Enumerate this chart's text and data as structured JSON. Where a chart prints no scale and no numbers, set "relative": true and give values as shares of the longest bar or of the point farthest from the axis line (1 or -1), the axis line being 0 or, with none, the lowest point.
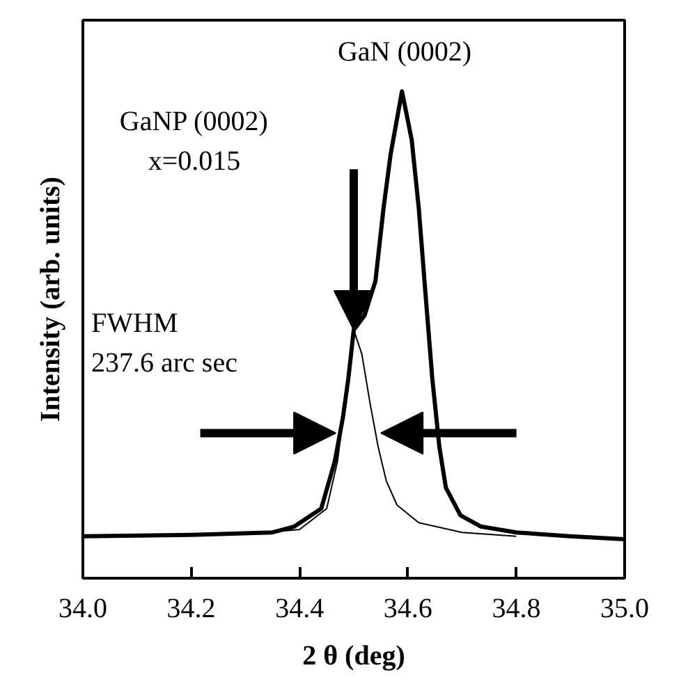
{
  "chart_data": {
    "type": "line",
    "relative": true,
    "xlabel": "2 θ (deg)",
    "ylabel": "Intensity (arb. units)",
    "xlim": [
      34.0,
      35.0
    ],
    "xticks": [
      {
        "value": 34.0,
        "label": "34.0"
      },
      {
        "value": 34.2,
        "label": "34.2"
      },
      {
        "value": 34.4,
        "label": "34.4"
      },
      {
        "value": 34.6,
        "label": "34.6"
      },
      {
        "value": 34.8,
        "label": "34.8"
      },
      {
        "value": 35.0,
        "label": "35.0"
      }
    ],
    "grid": false,
    "series": [
      {
        "color": "#000000",
        "x": [
          34.0,
          34.2,
          34.35,
          34.39,
          34.44,
          34.465,
          34.48,
          34.49,
          34.5,
          34.52,
          34.54,
          34.555,
          34.568,
          34.589,
          34.607,
          34.62,
          34.632,
          34.645,
          34.658,
          34.67,
          34.697,
          34.735,
          34.8,
          34.9,
          35.0
        ],
        "values": [
          0.086,
          0.089,
          0.094,
          0.106,
          0.143,
          0.24,
          0.33,
          0.41,
          0.51,
          0.54,
          0.61,
          0.76,
          0.87,
          1.0,
          0.9,
          0.76,
          0.59,
          0.41,
          0.27,
          0.186,
          0.129,
          0.106,
          0.094,
          0.086,
          0.08
        ]
      },
      {
        "color": "#000000",
        "x": [
          34.3,
          34.4,
          34.45,
          34.47,
          34.485,
          34.5,
          34.515,
          34.53,
          34.545,
          34.56,
          34.58,
          34.62,
          34.7,
          34.8
        ],
        "values": [
          0.09,
          0.1,
          0.143,
          0.24,
          0.37,
          0.51,
          0.46,
          0.36,
          0.27,
          0.2,
          0.15,
          0.114,
          0.094,
          0.086
        ]
      }
    ],
    "annotations": [
      "GaN (0002)",
      "GaNP (0002)\nx=0.015",
      "FWHM\n237.6 arc sec"
    ]
  }
}
